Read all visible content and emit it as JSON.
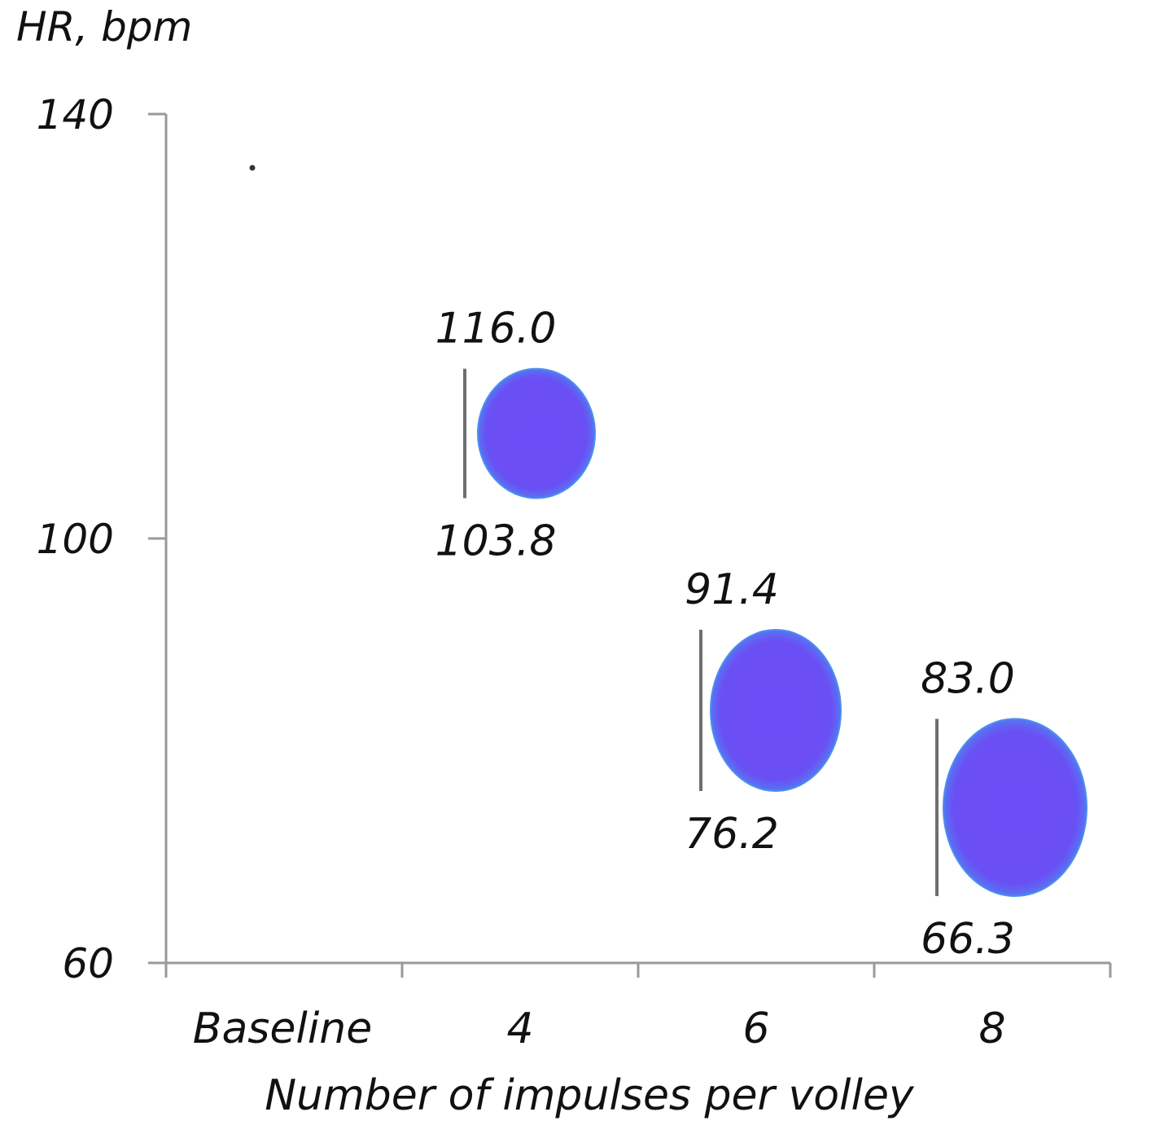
{
  "chart_data": {
    "type": "range",
    "title": "",
    "ylabel": "HR, bpm",
    "xlabel": "Number of impulses per volley",
    "ylim": [
      60,
      140
    ],
    "yticks": [
      60,
      100,
      140
    ],
    "ytick_labels": [
      "60",
      "100",
      "140"
    ],
    "categories": [
      "Baseline",
      "4",
      "6",
      "8"
    ],
    "ranges": [
      {
        "category": "4",
        "high": 116.0,
        "low": 103.8,
        "high_label": "116.0",
        "low_label": "103.8"
      },
      {
        "category": "6",
        "high": 91.4,
        "low": 76.2,
        "high_label": "91.4",
        "low_label": "76.2"
      },
      {
        "category": "8",
        "high": 83.0,
        "low": 66.3,
        "high_label": "83.0",
        "low_label": "66.3"
      }
    ],
    "colors": {
      "fill": "#6b4cf5",
      "edge": "#4a8ff0",
      "axis": "#9a9a9a",
      "range_line": "#6f6f6f"
    },
    "grid": false,
    "legend": "none"
  }
}
